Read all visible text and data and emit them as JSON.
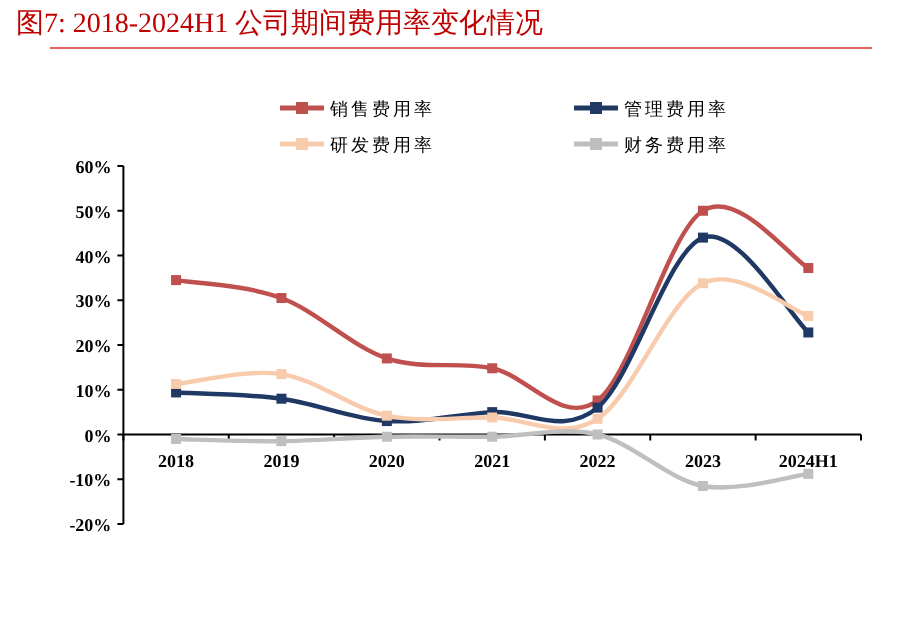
{
  "chart_data": {
    "type": "line",
    "title": "图7:    2018-2024H1 公司期间费用率变化情况",
    "categories": [
      "2018",
      "2019",
      "2020",
      "2021",
      "2022",
      "2023",
      "2024H1"
    ],
    "series": [
      {
        "name": "销售费用率",
        "color": "#c0504d",
        "values": [
          34.5,
          30.5,
          17,
          14.8,
          7.6,
          50,
          37.2
        ]
      },
      {
        "name": "管理费用率",
        "color": "#203864",
        "values": [
          9.4,
          8,
          3,
          5,
          6,
          44,
          22.8
        ]
      },
      {
        "name": "研发费用率",
        "color": "#f8cbad",
        "values": [
          11.3,
          13.5,
          4.2,
          3.8,
          3.5,
          33.8,
          26.5
        ]
      },
      {
        "name": "财务费用率",
        "color": "#bfbfbf",
        "values": [
          -1,
          -1.5,
          -0.5,
          -0.5,
          0,
          -11.5,
          -8.8
        ]
      }
    ],
    "ylim": [
      -20,
      60
    ],
    "yticks": [
      {
        "value": -20,
        "label": "-20%"
      },
      {
        "value": -10,
        "label": "-10%"
      },
      {
        "value": 0,
        "label": "0%"
      },
      {
        "value": 10,
        "label": "10%"
      },
      {
        "value": 20,
        "label": "20%"
      },
      {
        "value": 30,
        "label": "30%"
      },
      {
        "value": 40,
        "label": "40%"
      },
      {
        "value": 50,
        "label": "50%"
      },
      {
        "value": 60,
        "label": "60%"
      }
    ],
    "legend": "top",
    "marker": "square",
    "line_style": "solid"
  }
}
